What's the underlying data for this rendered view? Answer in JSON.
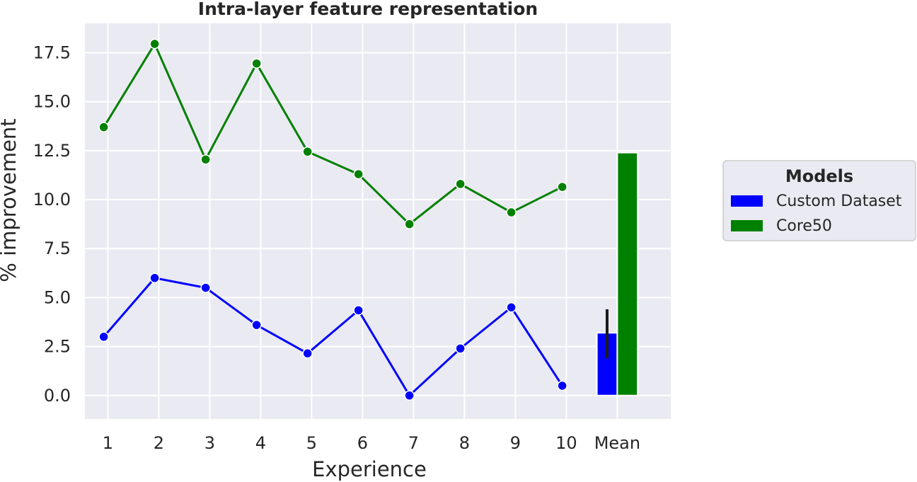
{
  "chart_data": {
    "type": "line",
    "title": "Intra-layer feature representation",
    "xlabel": "Experience",
    "ylabel": "% improvement",
    "categories": [
      "1",
      "2",
      "3",
      "4",
      "5",
      "6",
      "7",
      "8",
      "9",
      "10",
      "Mean"
    ],
    "ylim": [
      -1.2,
      19.0
    ],
    "yticks": [
      "0.0",
      "2.5",
      "5.0",
      "7.5",
      "10.0",
      "12.5",
      "15.0",
      "17.5"
    ],
    "grid": true,
    "legend": {
      "title": "Models",
      "placement": "outside-right"
    },
    "series": [
      {
        "name": "Custom Dataset",
        "color": "#0000ff",
        "x": [
          0.92,
          1.92,
          2.92,
          3.92,
          4.92,
          5.92,
          6.92,
          7.92,
          8.92,
          9.92
        ],
        "values": [
          3.0,
          6.0,
          5.5,
          3.6,
          2.15,
          4.35,
          0.0,
          2.4,
          4.5,
          0.5
        ],
        "mean": 3.2,
        "mean_error": [
          1.9,
          4.4
        ]
      },
      {
        "name": "Core50",
        "color": "#008000",
        "x": [
          0.92,
          1.92,
          2.92,
          3.92,
          4.92,
          5.92,
          6.92,
          7.92,
          8.92,
          9.92
        ],
        "values": [
          13.7,
          17.95,
          12.05,
          16.95,
          12.45,
          11.3,
          8.75,
          10.8,
          9.35,
          10.65
        ],
        "mean": 12.4
      }
    ]
  }
}
